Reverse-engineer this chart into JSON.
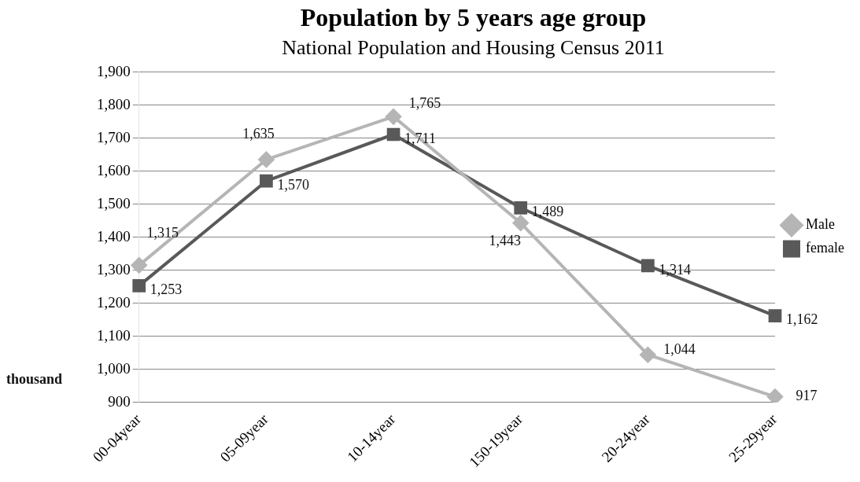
{
  "chart_data": {
    "type": "line",
    "title": "Population by 5 years age group",
    "subtitle": "National Population and Housing Census 2011",
    "ylabel": "thousand",
    "categories": [
      "00-04year",
      "05-09year",
      "10-14year",
      "150-19year",
      "20-24year",
      "25-29year"
    ],
    "series": [
      {
        "name": "Male",
        "color": "#b5b5b5",
        "marker": "diamond",
        "values": [
          1315,
          1635,
          1765,
          1443,
          1044,
          917
        ],
        "value_labels": [
          "1,315",
          "1,635",
          "1,765",
          "1,443",
          "1,044",
          "917"
        ]
      },
      {
        "name": "female",
        "color": "#595959",
        "marker": "square",
        "values": [
          1253,
          1570,
          1711,
          1489,
          1314,
          1162
        ],
        "value_labels": [
          "1,253",
          "1,570",
          "1,711",
          "1,489",
          "1,314",
          "1,162"
        ]
      }
    ],
    "ylim": [
      900,
      1900
    ],
    "yticks": [
      {
        "value": 900,
        "label": "900"
      },
      {
        "value": 1000,
        "label": "1,000"
      },
      {
        "value": 1100,
        "label": "1,100"
      },
      {
        "value": 1200,
        "label": "1,200"
      },
      {
        "value": 1300,
        "label": "1,300"
      },
      {
        "value": 1400,
        "label": "1,400"
      },
      {
        "value": 1500,
        "label": "1,500"
      },
      {
        "value": 1600,
        "label": "1,600"
      },
      {
        "value": 1700,
        "label": "1,700"
      },
      {
        "value": 1800,
        "label": "1,800"
      },
      {
        "value": 1900,
        "label": "1,900"
      }
    ],
    "grid": "y",
    "legend": "right",
    "line_style": "solid"
  }
}
